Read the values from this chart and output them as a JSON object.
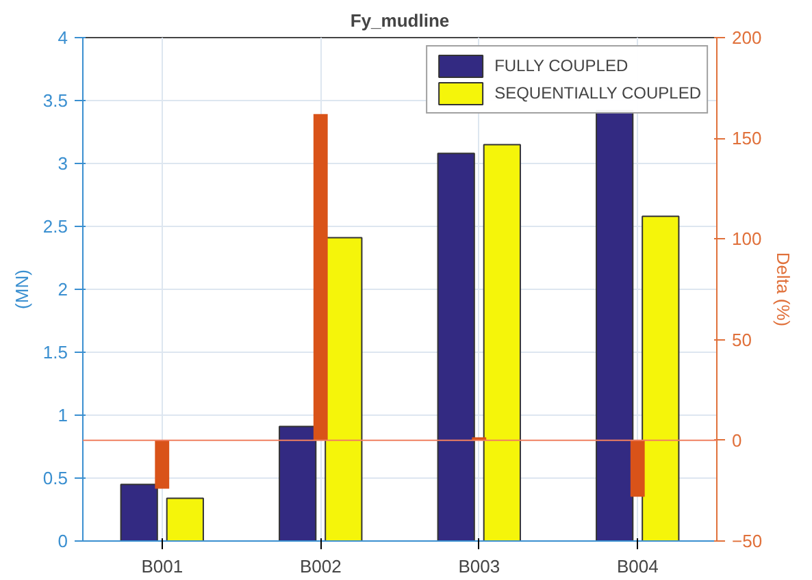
{
  "chart_data": {
    "type": "bar",
    "title": "Fy_mudline",
    "ylabel": "(MN)",
    "y2label": "Delta (%)",
    "categories": [
      "B001",
      "B002",
      "B003",
      "B004"
    ],
    "series": [
      {
        "name": "FULLY COUPLED",
        "color": "#332a82",
        "values": [
          0.45,
          0.91,
          3.08,
          3.42
        ]
      },
      {
        "name": "SEQUENTIALLY COUPLED",
        "color": "#f5f50a",
        "values": [
          0.34,
          2.41,
          3.15,
          2.58
        ]
      },
      {
        "type": "bar",
        "axis": "y2",
        "color": "#d95319",
        "values": [
          -24,
          162,
          1.5,
          -28
        ]
      }
    ],
    "ylim": [
      0,
      4
    ],
    "yticks": [
      0,
      0.5,
      1,
      1.5,
      2,
      2.5,
      3,
      3.5,
      4
    ],
    "y2lim": [
      -50,
      200
    ],
    "y2ticks": [
      -50,
      0,
      50,
      100,
      150,
      200
    ],
    "ref_lines": [
      {
        "axis": "y2",
        "value": 0,
        "color": "#f08060"
      }
    ],
    "grid": true,
    "legend": "top right"
  }
}
